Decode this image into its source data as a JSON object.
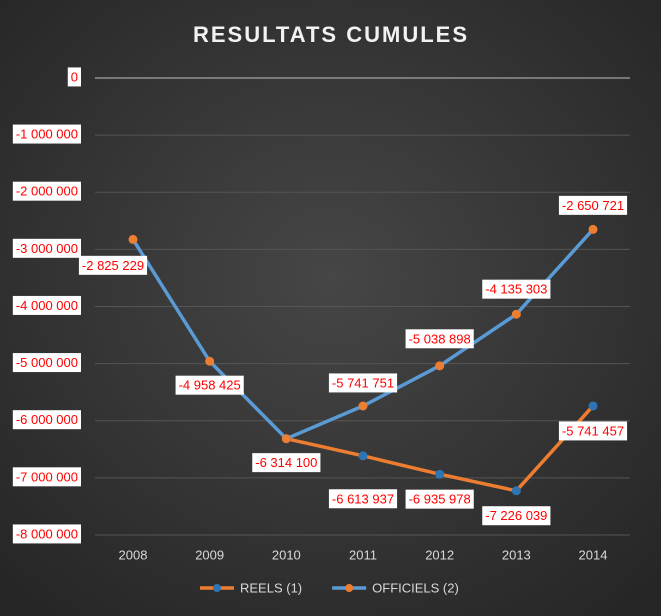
{
  "chart_data": {
    "type": "line",
    "title": "RESULTATS CUMULES",
    "categories": [
      "2008",
      "2009",
      "2010",
      "2011",
      "2012",
      "2013",
      "2014"
    ],
    "series": [
      {
        "name": "REELS (1)",
        "color": "#ed7d31",
        "marker_color": "#2e75b6",
        "values": [
          null,
          null,
          -6314100,
          -6613937,
          -6935978,
          -7226039,
          -5741457
        ],
        "value_labels": [
          null,
          null,
          null,
          "-6 613 937",
          "-6 935 978",
          "-7 226 039",
          "-5 741 457"
        ]
      },
      {
        "name": "OFFICIELS (2)",
        "color": "#5b9bd5",
        "marker_color": "#ed7d31",
        "values": [
          -2825229,
          -4958425,
          -6314100,
          -5741751,
          -5038898,
          -4135303,
          -2650721
        ],
        "value_labels": [
          "-2 825 229",
          "-4 958 425",
          "-6 314 100",
          "-5 741 751",
          "-5 038 898",
          "-4 135 303",
          "-2 650 721"
        ]
      }
    ],
    "ylim": [
      -8000000,
      0
    ],
    "yticks": [
      0,
      {
        "value": -1000000,
        "label": "-1 000 000"
      },
      {
        "value": -2000000,
        "label": "-2 000 000"
      },
      {
        "value": -3000000,
        "label": "-3 000 000"
      },
      {
        "value": -4000000,
        "label": "-4 000 000"
      },
      {
        "value": -5000000,
        "label": "-5 000 000"
      },
      {
        "value": -6000000,
        "label": "-6 000 000"
      },
      {
        "value": -7000000,
        "label": "-7 000 000"
      },
      {
        "value": -8000000,
        "label": "-8 000 000"
      }
    ],
    "grid": true,
    "legend": "bottom"
  }
}
